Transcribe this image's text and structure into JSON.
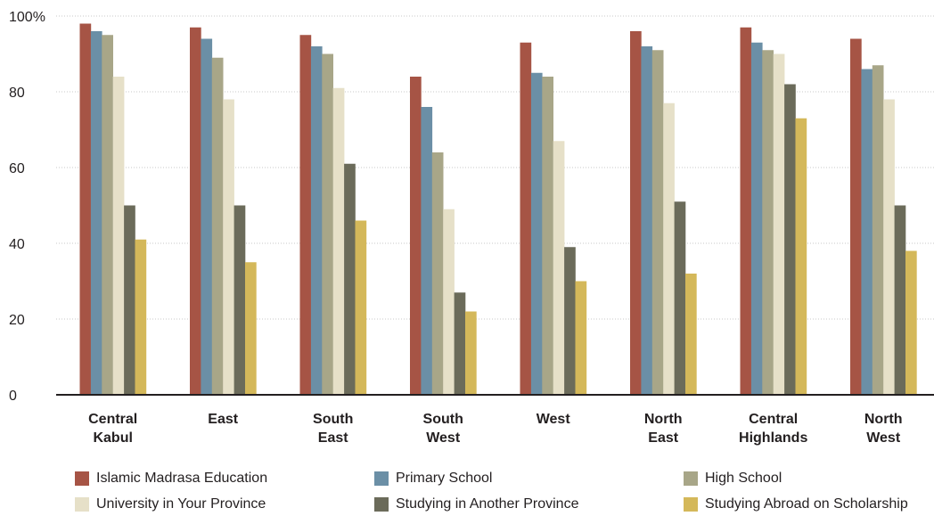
{
  "chart_data": {
    "type": "bar",
    "categories": [
      [
        "Central",
        "Kabul"
      ],
      [
        "East"
      ],
      [
        "South",
        "East"
      ],
      [
        "South",
        "West"
      ],
      [
        "West"
      ],
      [
        "North",
        "East"
      ],
      [
        "Central",
        "Highlands"
      ],
      [
        "North",
        "West"
      ]
    ],
    "series": [
      {
        "name": "Islamic Madrasa Education",
        "color": "#a65445",
        "values": [
          98,
          97,
          95,
          84,
          93,
          96,
          97,
          94
        ]
      },
      {
        "name": "Primary School",
        "color": "#6b8fa6",
        "values": [
          96,
          94,
          92,
          76,
          85,
          92,
          93,
          86
        ]
      },
      {
        "name": "High School",
        "color": "#a8a688",
        "values": [
          95,
          89,
          90,
          64,
          84,
          91,
          91,
          87
        ]
      },
      {
        "name": "University in Your Province",
        "color": "#e6e0c8",
        "values": [
          84,
          78,
          81,
          49,
          67,
          77,
          90,
          78
        ]
      },
      {
        "name": "Studying in Another Province",
        "color": "#6b6b5a",
        "values": [
          50,
          50,
          61,
          27,
          39,
          51,
          82,
          50
        ]
      },
      {
        "name": "Studying Abroad on Scholarship",
        "color": "#d4b85a",
        "values": [
          41,
          35,
          46,
          22,
          30,
          32,
          73,
          38
        ]
      }
    ],
    "yticks": [
      "0",
      "20",
      "40",
      "60",
      "80",
      "100%"
    ],
    "ytick_values": [
      0,
      20,
      40,
      60,
      80,
      100
    ],
    "ylim": [
      0,
      100
    ],
    "grid": true,
    "legend_position": "bottom",
    "title": "",
    "xlabel": "",
    "ylabel": ""
  }
}
